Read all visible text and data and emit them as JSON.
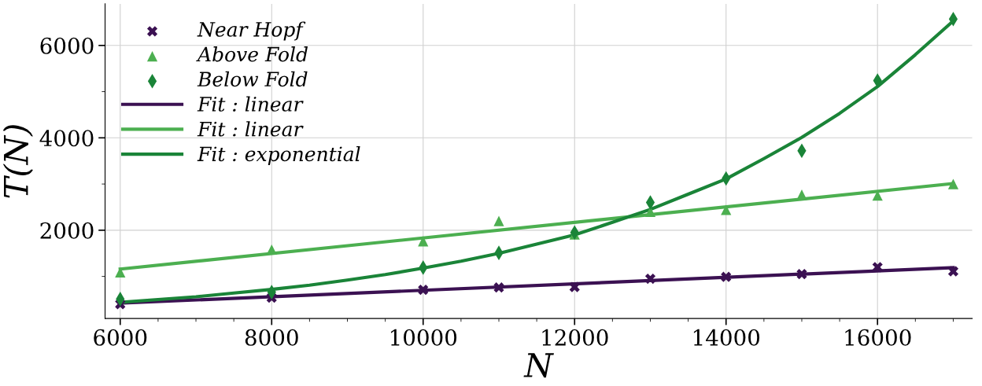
{
  "chart_data": {
    "type": "scatter",
    "xlabel": "N",
    "ylabel": "T(N)",
    "xlim": [
      5800,
      17250
    ],
    "ylim": [
      90,
      6900
    ],
    "xticks": [
      6000,
      8000,
      10000,
      12000,
      14000,
      16000
    ],
    "yticks": [
      2000,
      4000,
      6000
    ],
    "grid": true,
    "legend": "top left",
    "series": [
      {
        "name": "Near Hopf",
        "marker": "cross",
        "color": "#3b1152",
        "x": [
          6000,
          8000,
          10000,
          11000,
          12000,
          13000,
          14000,
          15000,
          16000,
          17000
        ],
        "values": [
          400,
          540,
          710,
          760,
          770,
          950,
          990,
          1050,
          1200,
          1110
        ]
      },
      {
        "name": "Above Fold",
        "marker": "triangle",
        "color": "#4caf50",
        "x": [
          6000,
          8000,
          10000,
          11000,
          12000,
          13000,
          14000,
          15000,
          16000,
          17000
        ],
        "values": [
          1090,
          1580,
          1760,
          2200,
          1910,
          2400,
          2440,
          2770,
          2750,
          3000
        ]
      },
      {
        "name": "Below Fold",
        "marker": "diamond",
        "color": "#1a8438",
        "x": [
          6000,
          8000,
          10000,
          11000,
          12000,
          13000,
          14000,
          15000,
          16000,
          17000
        ],
        "values": [
          510,
          660,
          1190,
          1510,
          1950,
          2600,
          3120,
          3720,
          5240,
          6570
        ]
      },
      {
        "name": "Fit : linear",
        "type": "line",
        "color": "#3b1152",
        "x": [
          6000,
          17000
        ],
        "values": [
          420,
          1190
        ]
      },
      {
        "name": "Fit : linear",
        "type": "line",
        "color": "#4caf50",
        "x": [
          6000,
          17000
        ],
        "values": [
          1160,
          3010
        ]
      },
      {
        "name": "Fit : exponential",
        "type": "line",
        "color": "#1a8438",
        "x": [
          6000,
          6500,
          7000,
          7500,
          8000,
          8500,
          9000,
          9500,
          10000,
          10500,
          11000,
          11500,
          12000,
          12500,
          13000,
          13500,
          14000,
          14500,
          15000,
          15500,
          16000,
          16500,
          17000
        ],
        "values": [
          440,
          500,
          560,
          640,
          720,
          810,
          920,
          1040,
          1180,
          1330,
          1500,
          1700,
          1900,
          2170,
          2450,
          2780,
          3110,
          3550,
          4010,
          4530,
          5110,
          5800,
          6530
        ]
      }
    ]
  }
}
